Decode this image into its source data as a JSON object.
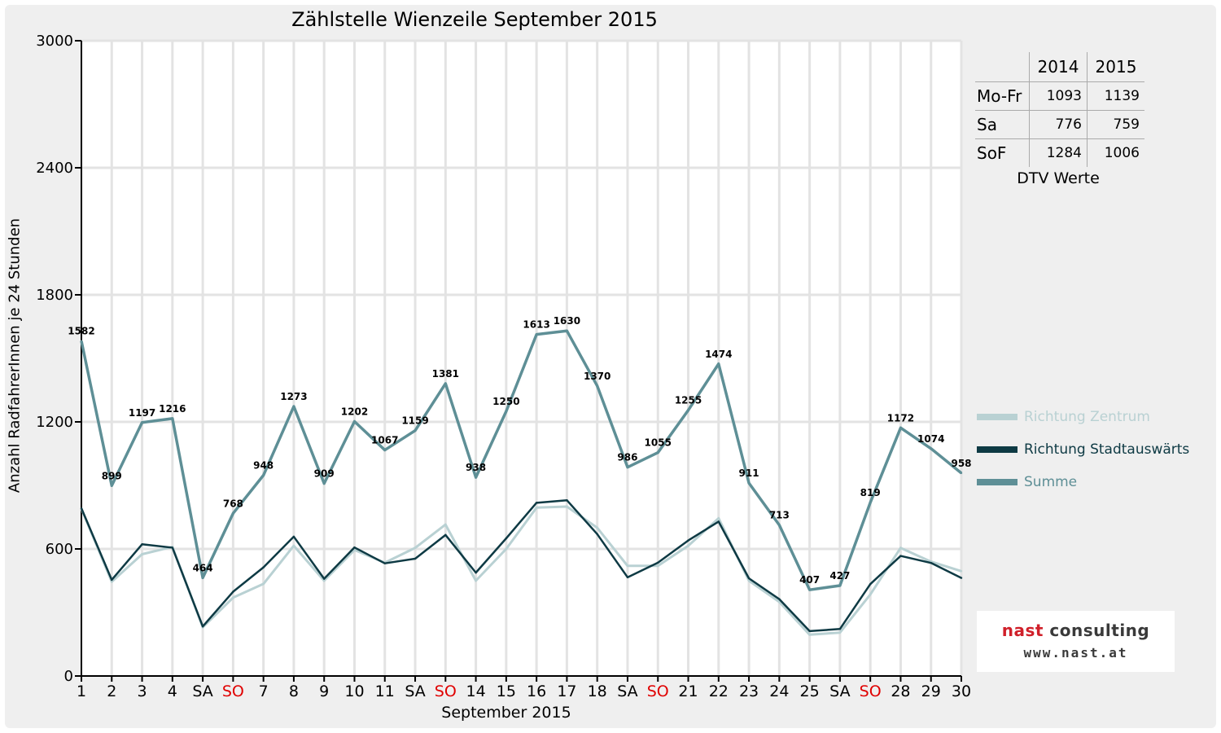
{
  "chart_data": {
    "type": "line",
    "title": "Zählstelle Wienzeile September 2015",
    "xlabel": "September 2015",
    "ylabel": "Anzahl RadfahrerInnen je 24 Stunden",
    "ylim": [
      0,
      3000
    ],
    "yticks": [
      0,
      600,
      1200,
      1800,
      2400,
      3000
    ],
    "grid": true,
    "legend_position": "right",
    "categories": [
      "1",
      "2",
      "3",
      "4",
      "SA",
      "SO",
      "7",
      "8",
      "9",
      "10",
      "11",
      "SA",
      "SO",
      "14",
      "15",
      "16",
      "17",
      "18",
      "SA",
      "SO",
      "21",
      "22",
      "23",
      "24",
      "25",
      "SA",
      "SO",
      "28",
      "29",
      "30"
    ],
    "category_colors": [
      "#000000",
      "#000000",
      "#000000",
      "#000000",
      "#000000",
      "#e00000",
      "#000000",
      "#000000",
      "#000000",
      "#000000",
      "#000000",
      "#000000",
      "#e00000",
      "#000000",
      "#000000",
      "#000000",
      "#000000",
      "#000000",
      "#000000",
      "#e00000",
      "#000000",
      "#000000",
      "#000000",
      "#000000",
      "#000000",
      "#000000",
      "#e00000",
      "#000000",
      "#000000",
      "#000000"
    ],
    "series": [
      {
        "name": "Richtung Zentrum",
        "color": "#b9d1d3",
        "values": [
          790,
          445,
          575,
          610,
          230,
          370,
          435,
          615,
          450,
          595,
          535,
          605,
          715,
          450,
          600,
          795,
          800,
          700,
          520,
          520,
          615,
          745,
          450,
          350,
          195,
          205,
          385,
          605,
          540,
          495
        ]
      },
      {
        "name": "Richtung Stadtauswärts",
        "color": "#0e3a44",
        "values": [
          792,
          454,
          622,
          606,
          234,
          398,
          513,
          658,
          459,
          607,
          532,
          554,
          666,
          488,
          650,
          818,
          830,
          670,
          466,
          535,
          640,
          729,
          461,
          363,
          212,
          222,
          434,
          567,
          534,
          463
        ]
      },
      {
        "name": "Summe",
        "color": "#5e8f96",
        "values": [
          1582,
          899,
          1197,
          1216,
          464,
          768,
          948,
          1273,
          909,
          1202,
          1067,
          1159,
          1381,
          938,
          1250,
          1613,
          1630,
          1370,
          986,
          1055,
          1255,
          1474,
          911,
          713,
          407,
          427,
          819,
          1172,
          1074,
          958
        ]
      }
    ],
    "data_labels": [
      "1582",
      "899",
      "1197",
      "1216",
      "464",
      "768",
      "948",
      "1273",
      "909",
      "1202",
      "1067",
      "1159",
      "1381",
      "938",
      "1250",
      "1613",
      "1630",
      "1370",
      "986",
      "1055",
      "1255",
      "1474",
      "911",
      "713",
      "407",
      "427",
      "819",
      "1172",
      "1074",
      "958"
    ]
  },
  "dtv_table": {
    "headers": [
      "",
      "2014",
      "2015"
    ],
    "rows": [
      {
        "label": "Mo-Fr",
        "v2014": "1093",
        "v2015": "1139"
      },
      {
        "label": "Sa",
        "v2014": "776",
        "v2015": "759"
      },
      {
        "label": "SoF",
        "v2014": "1284",
        "v2015": "1006"
      }
    ],
    "caption": "DTV Werte"
  },
  "legend": {
    "items": [
      {
        "label": "Richtung Zentrum",
        "color": "#b9d1d3"
      },
      {
        "label": "Richtung Stadtauswärts",
        "color": "#0e3a44"
      },
      {
        "label": "Summe",
        "color": "#5e8f96"
      }
    ]
  },
  "logo": {
    "word1": "nast",
    "word2": " consulting",
    "url": "www.nast.at"
  }
}
